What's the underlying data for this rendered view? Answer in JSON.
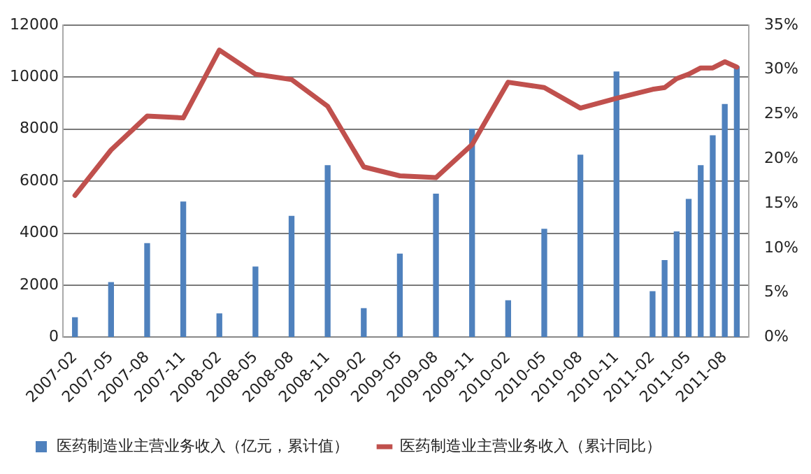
{
  "chart_data": {
    "type": "bar",
    "x": [
      "2007-02",
      "2007-05",
      "2007-08",
      "2007-11",
      "2008-02",
      "2008-05",
      "2008-08",
      "2008-11",
      "2009-02",
      "2009-05",
      "2009-08",
      "2009-11",
      "2010-02",
      "2010-05",
      "2010-08",
      "2010-11",
      "2011-02",
      "2011-03",
      "2011-04",
      "2011-05",
      "2011-06",
      "2011-07",
      "2011-08",
      "2011-09"
    ],
    "series": [
      {
        "name": "医药制造业主营业务收入（亿元，累计值）",
        "color": "#4f81bd",
        "values": [
          750,
          2100,
          3600,
          5200,
          900,
          2700,
          4650,
          6600,
          1100,
          3200,
          5500,
          8000,
          1400,
          4150,
          7000,
          10200,
          1750,
          2950,
          4050,
          5300,
          6600,
          7750,
          8950,
          10400
        ]
      },
      {
        "name": "医药制造业主营业务收入（累计同比）",
        "type": "line",
        "axis": "y2",
        "color": "#c0504d",
        "values": [
          15.9,
          21.0,
          24.8,
          24.6,
          32.2,
          29.5,
          28.9,
          25.9,
          19.1,
          18.1,
          17.9,
          21.6,
          28.6,
          28.0,
          25.7,
          26.8,
          27.8,
          28.0,
          29.0,
          29.5,
          30.2,
          30.2,
          30.9,
          30.3
        ]
      }
    ],
    "xlim": [
      "2007-01",
      "2011-10"
    ],
    "xticks": [
      "2007-02",
      "2007-05",
      "2007-08",
      "2007-11",
      "2008-02",
      "2008-05",
      "2008-08",
      "2008-11",
      "2009-02",
      "2009-05",
      "2009-08",
      "2009-11",
      "2010-02",
      "2010-05",
      "2010-08",
      "2010-11",
      "2011-02",
      "2011-05",
      "2011-08"
    ],
    "ylim": [
      0,
      12000
    ],
    "yticks": [
      0,
      2000,
      4000,
      6000,
      8000,
      10000,
      12000
    ],
    "y2lim": [
      0,
      35
    ],
    "y2ticks": [
      {
        "value": 0,
        "label": "0%"
      },
      {
        "value": 5,
        "label": "5%"
      },
      {
        "value": 10,
        "label": "10%"
      },
      {
        "value": 15,
        "label": "15%"
      },
      {
        "value": 20,
        "label": "20%"
      },
      {
        "value": 25,
        "label": "25%"
      },
      {
        "value": 30,
        "label": "30%"
      },
      {
        "value": 35,
        "label": "35%"
      }
    ],
    "grid": "y",
    "legend": "bottom",
    "marker": "none",
    "line_style": "solid"
  }
}
